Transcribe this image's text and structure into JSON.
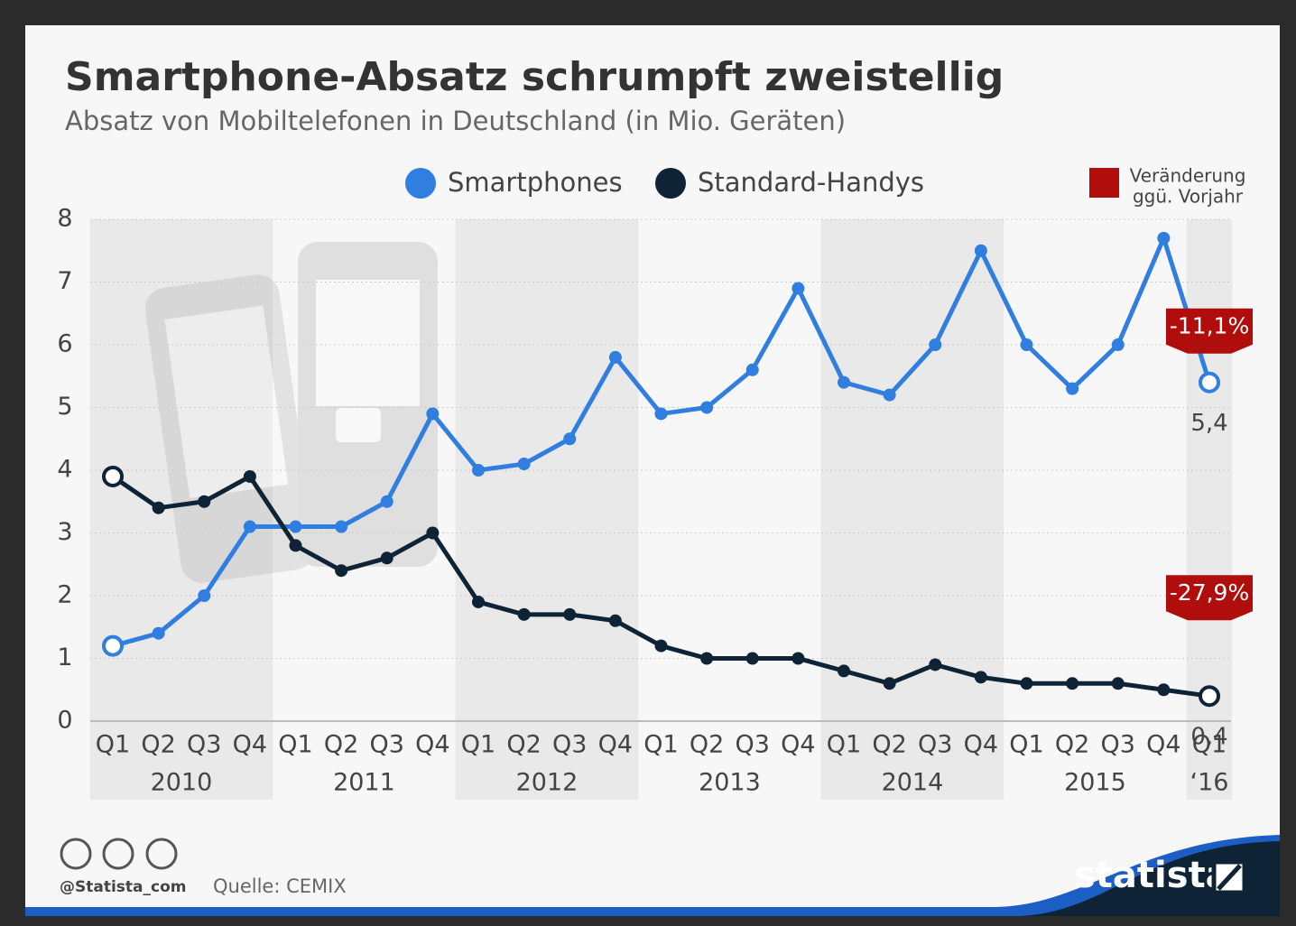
{
  "chart_data": {
    "type": "line",
    "title": "Smartphone-Absatz schrumpft zweistellig",
    "subtitle": "Absatz von Mobiltelefonen in Deutschland (in Mio. Geräten)",
    "categories": [
      "Q1",
      "Q2",
      "Q3",
      "Q4",
      "Q1",
      "Q2",
      "Q3",
      "Q4",
      "Q1",
      "Q2",
      "Q3",
      "Q4",
      "Q1",
      "Q2",
      "Q3",
      "Q4",
      "Q1",
      "Q2",
      "Q3",
      "Q4",
      "Q1",
      "Q2",
      "Q3",
      "Q4",
      "Q1"
    ],
    "years": [
      {
        "label": "2010",
        "quarters": 4
      },
      {
        "label": "2011",
        "quarters": 4
      },
      {
        "label": "2012",
        "quarters": 4
      },
      {
        "label": "2013",
        "quarters": 4
      },
      {
        "label": "2014",
        "quarters": 4
      },
      {
        "label": "2015",
        "quarters": 4
      },
      {
        "label": "‘16",
        "quarters": 1
      }
    ],
    "series": [
      {
        "name": "Smartphones",
        "color": "#2f7ee0",
        "values": [
          1.2,
          1.4,
          2.0,
          3.1,
          3.1,
          3.1,
          3.5,
          4.9,
          4.0,
          4.1,
          4.5,
          5.8,
          4.9,
          5.0,
          5.6,
          6.9,
          5.4,
          5.2,
          6.0,
          7.5,
          6.0,
          5.3,
          6.0,
          7.7,
          5.4
        ],
        "last_value_label": "5,4",
        "change_label": "-11,1%"
      },
      {
        "name": "Standard-Handys",
        "color": "#0f2336",
        "values": [
          3.9,
          3.4,
          3.5,
          3.9,
          2.8,
          2.4,
          2.6,
          3.0,
          1.9,
          1.7,
          1.7,
          1.6,
          1.2,
          1.0,
          1.0,
          1.0,
          0.8,
          0.6,
          0.9,
          0.7,
          0.6,
          0.6,
          0.6,
          0.5,
          0.4
        ],
        "last_value_label": "0,4",
        "change_label": "-27,9%"
      }
    ],
    "change_legend": {
      "color": "#b00d0d",
      "lines": [
        "Veränderung",
        "ggü. Vorjahr"
      ]
    },
    "ylim": [
      0,
      8
    ],
    "yticks": [
      0,
      1,
      2,
      3,
      4,
      5,
      6,
      7,
      8
    ],
    "grid": true,
    "footer": {
      "handle": "@Statista_com",
      "source": "Quelle: CEMIX",
      "brand": "statista"
    }
  }
}
